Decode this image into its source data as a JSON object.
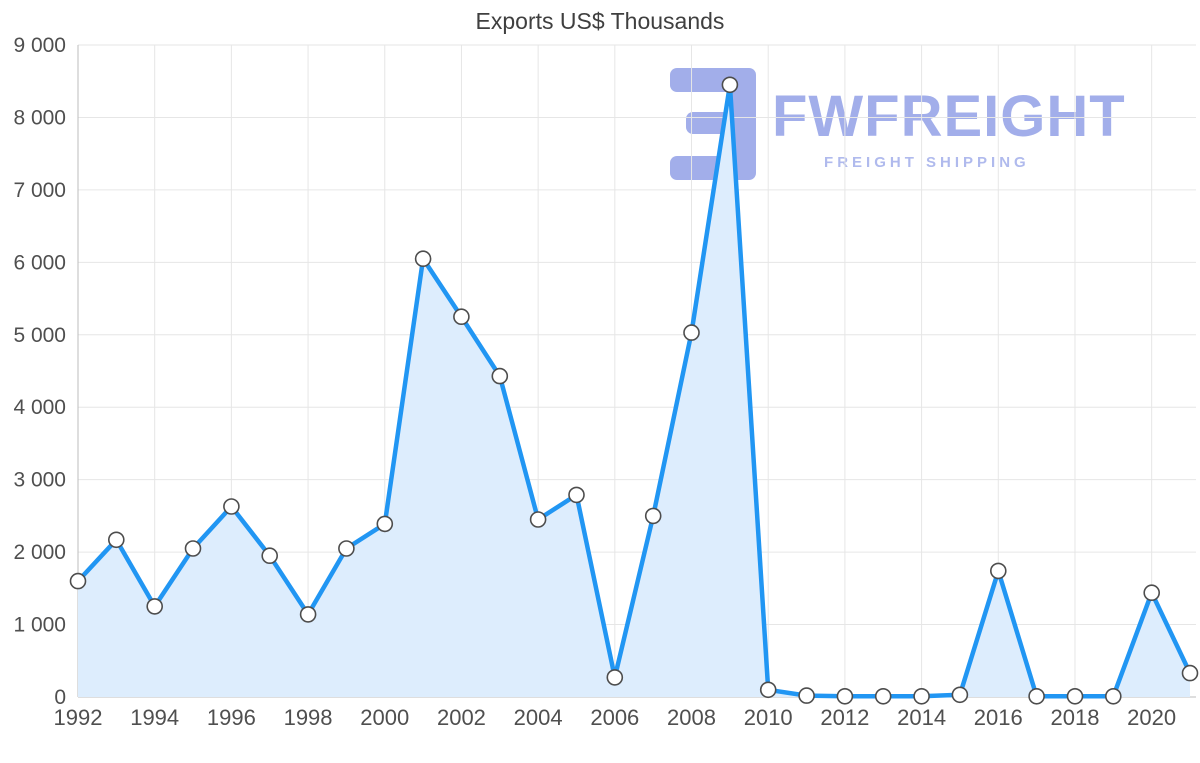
{
  "chart_data": {
    "type": "area",
    "title": "Exports US$ Thousands",
    "x": [
      1992,
      1993,
      1994,
      1995,
      1996,
      1997,
      1998,
      1999,
      2000,
      2001,
      2002,
      2003,
      2004,
      2005,
      2006,
      2007,
      2008,
      2009,
      2010,
      2011,
      2012,
      2013,
      2014,
      2015,
      2016,
      2017,
      2018,
      2019,
      2020,
      2021
    ],
    "values": [
      1600,
      2170,
      1250,
      2050,
      2630,
      1950,
      1140,
      2050,
      2390,
      6050,
      5250,
      4430,
      2450,
      2790,
      270,
      2500,
      5030,
      8450,
      100,
      20,
      10,
      10,
      10,
      30,
      1740,
      10,
      10,
      10,
      1440,
      330
    ],
    "ylim": [
      0,
      9000
    ],
    "ytick_step": 1000,
    "ytick_labels": [
      "0",
      "1 000",
      "2 000",
      "3 000",
      "4 000",
      "5 000",
      "6 000",
      "7 000",
      "8 000",
      "9 000"
    ],
    "xtick_labels": [
      "1992",
      "1994",
      "1996",
      "1998",
      "2000",
      "2002",
      "2004",
      "2006",
      "2008",
      "2010",
      "2012",
      "2014",
      "2016",
      "2018",
      "2020"
    ],
    "grid": "on",
    "legend": "none",
    "line_color": "#2196f3",
    "fill_color": "#ddedfd",
    "marker_fill": "#ffffff",
    "marker_stroke": "#4d4d4d",
    "grid_color": "#e6e6e6",
    "axis_color": "#bdbdbd",
    "label_color": "#4f4f4f"
  },
  "watermark": {
    "brand": "FWFREIGHT",
    "tagline": "FREIGHT SHIPPING",
    "color": "#98a6e8",
    "logo_icon": "reversed-e-logo"
  }
}
